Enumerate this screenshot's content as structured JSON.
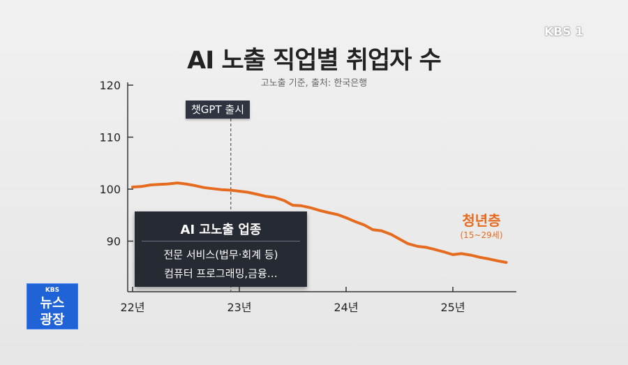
{
  "broadcaster": {
    "logo_text": "KBS 1"
  },
  "program_logo": {
    "top_text": "KBS",
    "line1": "뉴스",
    "line2": "광장"
  },
  "colors": {
    "series": "#e56b1f",
    "axis": "#333333",
    "box_bg": "#262a33"
  },
  "chart_data": {
    "type": "line",
    "title": "AI 노출 직업별 취업자 수",
    "subtitle": "고노출 기준, 출처: 한국은행",
    "y_ticks": [
      "120",
      "110",
      "100",
      "90"
    ],
    "x_ticks": [
      "22년",
      "23년",
      "24년",
      "25년"
    ],
    "ylim": [
      80,
      120
    ],
    "xlim": [
      2022.0,
      2025.55
    ],
    "grid": false,
    "series": [
      {
        "name": "청년층",
        "note": "(15~29세)",
        "points": [
          [
            2022.0,
            100.4
          ],
          [
            2022.08,
            100.5
          ],
          [
            2022.17,
            100.8
          ],
          [
            2022.25,
            100.9
          ],
          [
            2022.33,
            101.0
          ],
          [
            2022.42,
            101.2
          ],
          [
            2022.5,
            101.0
          ],
          [
            2022.58,
            100.7
          ],
          [
            2022.67,
            100.3
          ],
          [
            2022.75,
            100.1
          ],
          [
            2022.83,
            99.9
          ],
          [
            2022.92,
            99.8
          ],
          [
            2023.0,
            99.6
          ],
          [
            2023.08,
            99.4
          ],
          [
            2023.17,
            99.0
          ],
          [
            2023.25,
            98.6
          ],
          [
            2023.33,
            98.4
          ],
          [
            2023.42,
            97.8
          ],
          [
            2023.5,
            96.9
          ],
          [
            2023.58,
            96.8
          ],
          [
            2023.67,
            96.4
          ],
          [
            2023.75,
            95.9
          ],
          [
            2023.83,
            95.5
          ],
          [
            2023.92,
            95.1
          ],
          [
            2024.0,
            94.5
          ],
          [
            2024.08,
            93.8
          ],
          [
            2024.17,
            93.1
          ],
          [
            2024.25,
            92.2
          ],
          [
            2024.33,
            92.0
          ],
          [
            2024.42,
            91.3
          ],
          [
            2024.5,
            90.4
          ],
          [
            2024.58,
            89.5
          ],
          [
            2024.67,
            89.0
          ],
          [
            2024.75,
            88.8
          ],
          [
            2024.83,
            88.4
          ],
          [
            2024.92,
            87.9
          ],
          [
            2025.0,
            87.4
          ],
          [
            2025.08,
            87.6
          ],
          [
            2025.17,
            87.3
          ],
          [
            2025.25,
            86.9
          ],
          [
            2025.33,
            86.6
          ],
          [
            2025.42,
            86.2
          ],
          [
            2025.5,
            85.9
          ]
        ]
      }
    ],
    "annotations": [
      {
        "type": "vline",
        "x": 2022.92,
        "label": "챗GPT 출시"
      }
    ]
  },
  "info_box": {
    "title": "AI 고노출 업종",
    "lines": [
      "전문 서비스(법무·회계 등)",
      "컴퓨터 프로그래밍,금융…"
    ]
  }
}
